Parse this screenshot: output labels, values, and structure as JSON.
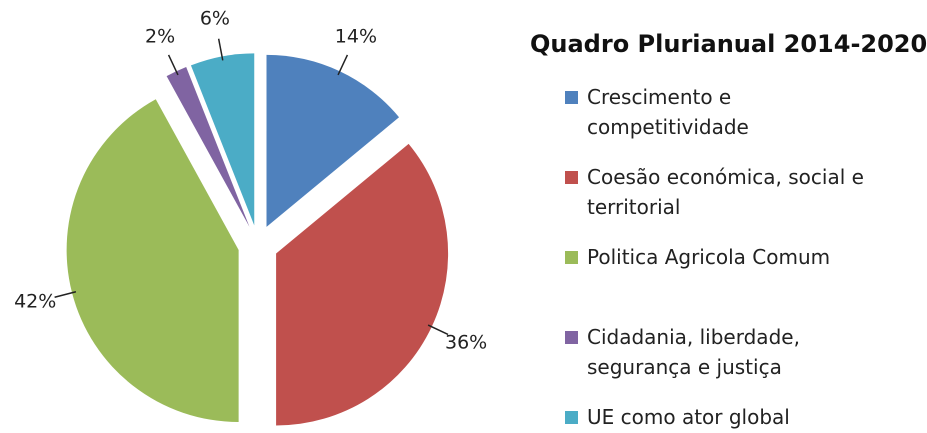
{
  "chart_data": {
    "type": "pie",
    "title": "Quadro Plurianual 2014-2020",
    "categories": [
      "Crescimento e competitividade",
      "Coesão económica, social e territorial",
      "Politica Agricola Comum",
      "Cidadania, liberdade, segurança e justiça",
      "UE como ator global"
    ],
    "values": [
      14,
      36,
      42,
      2,
      6
    ],
    "value_labels": [
      "14%",
      "36%",
      "42%",
      "2%",
      "6%"
    ],
    "colors": [
      "#4f81bd",
      "#c0504d",
      "#9bbb59",
      "#8064a2",
      "#4bacc6"
    ]
  }
}
